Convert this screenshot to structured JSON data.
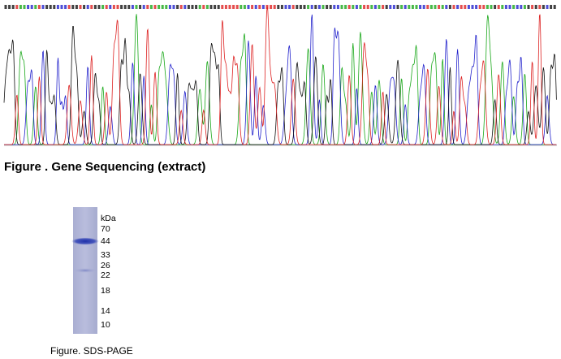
{
  "sequencing_figure": {
    "caption": "Figure . Gene Sequencing (extract)"
  },
  "gel_figure": {
    "unit": "kDa",
    "markers": [
      "70",
      "44",
      "33",
      "26",
      "22",
      "18",
      "14",
      "10"
    ],
    "caption": "Figure. SDS-PAGE"
  }
}
